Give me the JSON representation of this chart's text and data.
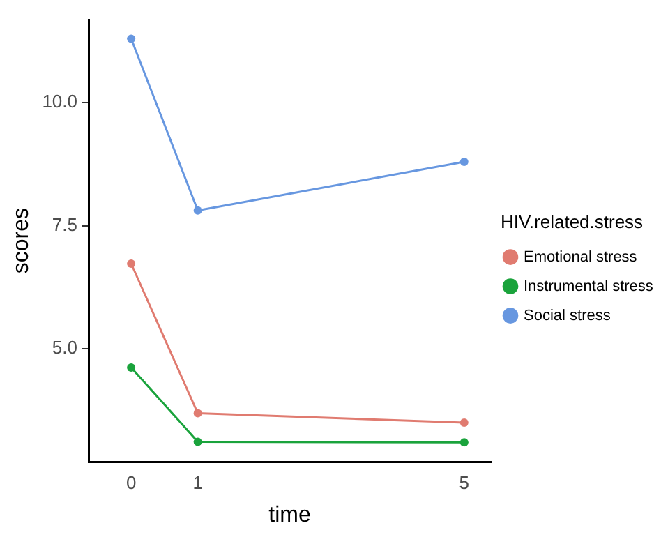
{
  "chart_data": {
    "type": "line",
    "xlabel": "time",
    "ylabel": "scores",
    "legend_title": "HIV.related.stress",
    "legend": "right",
    "grid": false,
    "marker": "circle",
    "line_style": "solid",
    "x": [
      0,
      1,
      5
    ],
    "xlim": [
      -0.64,
      5.4
    ],
    "xticks": [
      0,
      1,
      5
    ],
    "ylim": [
      2.7,
      11.69
    ],
    "yticks": [
      {
        "value": 5,
        "label": "5.0"
      },
      7.5,
      {
        "value": 10,
        "label": "10.0"
      }
    ],
    "series": [
      {
        "name": "Emotional stress",
        "color": "#e07b70",
        "values": [
          6.73,
          3.69,
          3.5
        ]
      },
      {
        "name": "Instrumental stress",
        "color": "#1aa33c",
        "values": [
          4.62,
          3.11,
          3.1
        ]
      },
      {
        "name": "Social stress",
        "color": "#6797e0",
        "values": [
          11.3,
          7.81,
          8.8
        ]
      }
    ]
  }
}
